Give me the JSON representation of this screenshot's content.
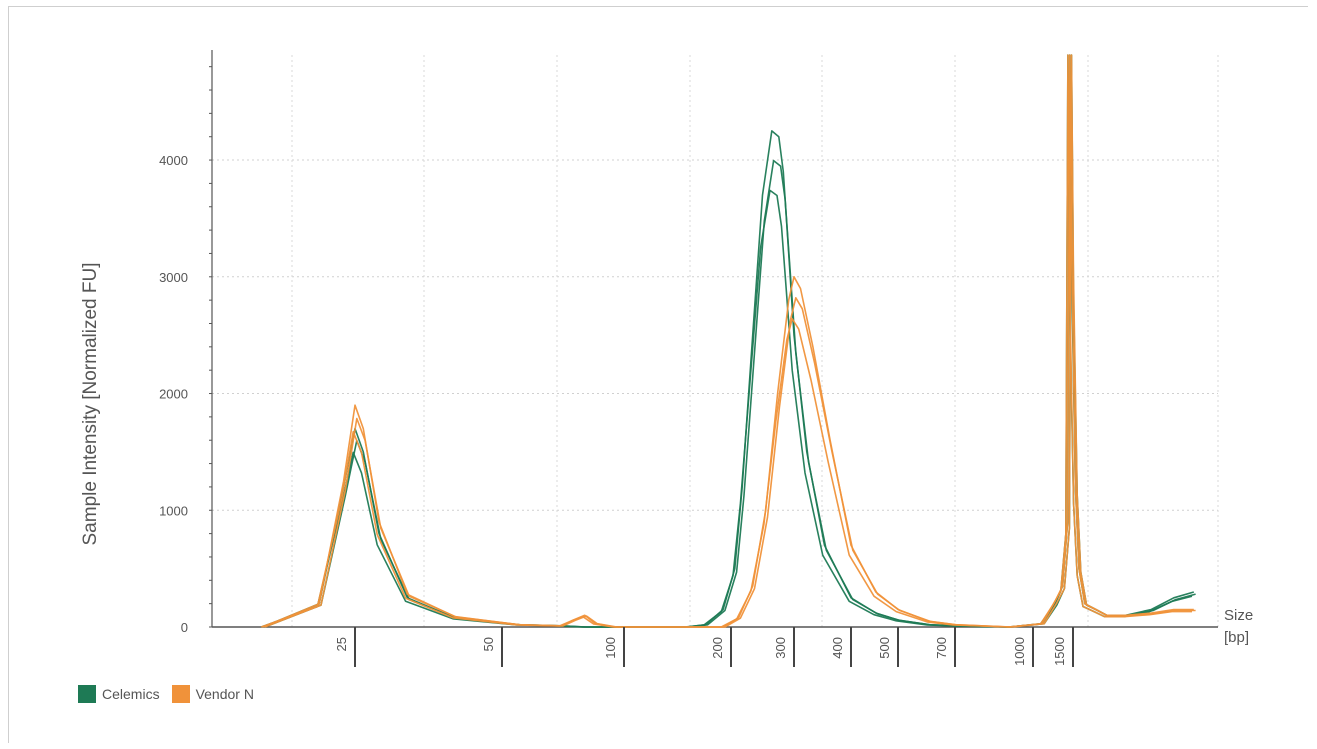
{
  "chart_data": {
    "type": "line",
    "title": "",
    "xlabel": "Size [bp]",
    "xlabel_lines": [
      "Size",
      "[bp]"
    ],
    "ylabel": "Sample Intensity [Normalized FU]",
    "ylim": [
      0,
      4900
    ],
    "yticks": [
      0,
      1000,
      2000,
      3000,
      4000
    ],
    "xscale": "ladder",
    "xticks": [
      "25",
      "50",
      "100",
      "200",
      "300",
      "400",
      "500",
      "700",
      "1000",
      "1500"
    ],
    "grid": true,
    "legend_placement": "bottom-left",
    "x_unit_note": "x values are sizes in bp",
    "series": [
      {
        "name": "Celemics",
        "color": "#1e7a55",
        "replicates": 3,
        "x": [
          18,
          22,
          24,
          25,
          26,
          28,
          32,
          40,
          55,
          70,
          80,
          95,
          110,
          130,
          150,
          170,
          190,
          205,
          215,
          230,
          245,
          260,
          272,
          280,
          290,
          300,
          320,
          350,
          400,
          450,
          500,
          600,
          700,
          900,
          1100,
          1250,
          1350,
          1420,
          1450,
          1480,
          1520,
          1550,
          1600,
          1700,
          1800,
          2000,
          2300,
          2600,
          2900
        ],
        "values": [
          0,
          200,
          1200,
          1700,
          1500,
          800,
          250,
          80,
          20,
          10,
          0,
          0,
          0,
          0,
          0,
          20,
          150,
          500,
          1200,
          2500,
          3700,
          4250,
          4200,
          3900,
          3200,
          2500,
          1500,
          700,
          250,
          120,
          60,
          20,
          10,
          0,
          30,
          200,
          350,
          900,
          4900,
          3000,
          1200,
          500,
          200,
          150,
          100,
          100,
          150,
          250,
          300
        ]
      },
      {
        "name": "Vendor N",
        "color": "#f0923a",
        "replicates": 3,
        "x": [
          18,
          22,
          24,
          25,
          26,
          28,
          32,
          40,
          55,
          70,
          75,
          80,
          85,
          95,
          110,
          150,
          190,
          210,
          230,
          250,
          270,
          290,
          300,
          310,
          330,
          360,
          400,
          450,
          500,
          600,
          700,
          900,
          1100,
          1250,
          1350,
          1420,
          1450,
          1480,
          1520,
          1550,
          1600,
          1700,
          1800,
          2000,
          2300,
          2600,
          2900
        ],
        "values": [
          0,
          200,
          1250,
          1900,
          1700,
          900,
          280,
          90,
          20,
          10,
          60,
          100,
          30,
          0,
          0,
          0,
          0,
          80,
          350,
          1000,
          2000,
          2800,
          3000,
          2900,
          2400,
          1600,
          700,
          300,
          150,
          50,
          20,
          0,
          30,
          220,
          350,
          900,
          4900,
          3200,
          1200,
          500,
          200,
          150,
          100,
          100,
          120,
          150,
          150
        ]
      }
    ]
  },
  "legend": {
    "items": [
      {
        "label": "Celemics",
        "color": "#1e7a55"
      },
      {
        "label": "Vendor N",
        "color": "#f0923a"
      }
    ]
  }
}
